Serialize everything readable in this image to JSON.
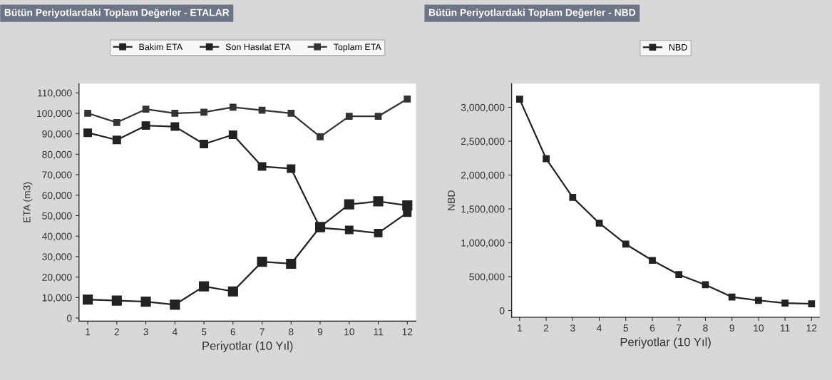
{
  "chart_data": [
    {
      "type": "line",
      "title": "Bütün Periyotlardaki Toplam Değerler - ETALAR",
      "xlabel": "Periyotlar (10 Yıl)",
      "ylabel": "ETA (m3)",
      "x": [
        1,
        2,
        3,
        4,
        5,
        6,
        7,
        8,
        9,
        10,
        11,
        12
      ],
      "series": [
        {
          "name": "Bakim ETA",
          "color": "#222222",
          "values": [
            9000,
            8500,
            8000,
            6500,
            15500,
            13000,
            27500,
            26500,
            44500,
            55500,
            57000,
            55000
          ]
        },
        {
          "name": "Son Hasılat ETA",
          "color": "#222222",
          "values": [
            90500,
            87000,
            94000,
            93500,
            85000,
            89500,
            74000,
            73000,
            44000,
            43000,
            41500,
            51500
          ]
        },
        {
          "name": "Toplam ETA",
          "color": "#333333",
          "values": [
            100000,
            95500,
            102000,
            100000,
            100500,
            103000,
            101500,
            100000,
            88500,
            98500,
            98500,
            107000
          ]
        }
      ],
      "xlim": [
        0.7,
        12.3
      ],
      "xticks": [
        1,
        2,
        3,
        4,
        5,
        6,
        7,
        8,
        9,
        10,
        11,
        12
      ],
      "ylim": [
        -1500,
        114500
      ],
      "yticks": [
        {
          "value": 0,
          "label": "0"
        },
        {
          "value": 10000,
          "label": "10,000"
        },
        {
          "value": 20000,
          "label": "20,000"
        },
        {
          "value": 30000,
          "label": "30,000"
        },
        {
          "value": 40000,
          "label": "40,000"
        },
        {
          "value": 50000,
          "label": "50,000"
        },
        {
          "value": 60000,
          "label": "60,000"
        },
        {
          "value": 70000,
          "label": "70,000"
        },
        {
          "value": 80000,
          "label": "80,000"
        },
        {
          "value": 90000,
          "label": "90,000"
        },
        {
          "value": 100000,
          "label": "100,000"
        },
        {
          "value": 110000,
          "label": "110,000"
        }
      ],
      "marker": "square",
      "legend": "top",
      "grid": false
    },
    {
      "type": "line",
      "title": "Bütün Periyotlardaki Toplam Değerler - NBD",
      "xlabel": "Periyotlar (10 Yıl)",
      "ylabel": "NBD",
      "x": [
        1,
        2,
        3,
        4,
        5,
        6,
        7,
        8,
        9,
        10,
        11,
        12
      ],
      "series": [
        {
          "name": "NBD",
          "color": "#222222",
          "values": [
            3120000,
            2240000,
            1670000,
            1290000,
            980000,
            740000,
            530000,
            380000,
            200000,
            150000,
            110000,
            100000
          ]
        }
      ],
      "xlim": [
        0.7,
        12.3
      ],
      "xticks": [
        1,
        2,
        3,
        4,
        5,
        6,
        7,
        8,
        9,
        10,
        11,
        12
      ],
      "ylim": [
        -100000,
        3350000
      ],
      "yticks": [
        {
          "value": 0,
          "label": "0"
        },
        {
          "value": 500000,
          "label": "500,000"
        },
        {
          "value": 1000000,
          "label": "1,000,000"
        },
        {
          "value": 1500000,
          "label": "1,500,000"
        },
        {
          "value": 2000000,
          "label": "2,000,000"
        },
        {
          "value": 2500000,
          "label": "2,500,000"
        },
        {
          "value": 3000000,
          "label": "3,000,000"
        }
      ],
      "marker": "square",
      "legend": "top",
      "grid": false
    }
  ]
}
